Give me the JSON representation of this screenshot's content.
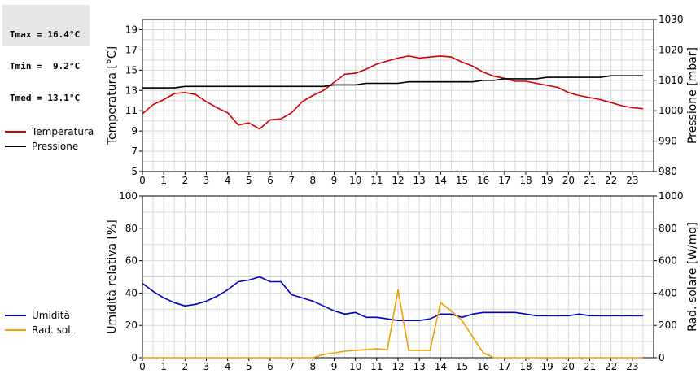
{
  "stats": {
    "tmax": "Tmax = 16.4°C",
    "tmin": "Tmin =  9.2°C",
    "tmed": "Tmed = 13.1°C"
  },
  "legend_top": [
    {
      "label": "Temperatura",
      "color": "#d40000"
    },
    {
      "label": "Pressione",
      "color": "#000000"
    }
  ],
  "legend_bottom": [
    {
      "label": "Umidità",
      "color": "#0000c8"
    },
    {
      "label": "Rad. sol.",
      "color": "#f0a000"
    }
  ],
  "chart_data": [
    {
      "type": "line",
      "ylabel": "Temperatura [°C]",
      "y2label": "Pressione [mbar]",
      "xlim": [
        0,
        24
      ],
      "xticks": [
        0,
        1,
        2,
        3,
        4,
        5,
        6,
        7,
        8,
        9,
        10,
        11,
        12,
        13,
        14,
        15,
        16,
        17,
        18,
        19,
        20,
        21,
        22,
        23
      ],
      "ylim": [
        5,
        20
      ],
      "yticks": [
        5,
        7,
        9,
        11,
        13,
        15,
        17,
        19
      ],
      "y2lim": [
        980,
        1030
      ],
      "y2ticks": [
        980,
        990,
        1000,
        1010,
        1020,
        1030
      ],
      "grid": true,
      "series": [
        {
          "name": "Temperatura",
          "axis": "left",
          "color": "#d40000",
          "x": [
            0,
            0.5,
            1,
            1.5,
            2,
            2.5,
            3,
            3.5,
            4,
            4.5,
            5,
            5.5,
            6,
            6.5,
            7,
            7.5,
            8,
            8.5,
            9,
            9.5,
            10,
            10.5,
            11,
            11.5,
            12,
            12.5,
            13,
            13.5,
            14,
            14.5,
            15,
            15.5,
            16,
            16.5,
            17,
            17.5,
            18,
            18.5,
            19,
            19.5,
            20,
            20.5,
            21,
            21.5,
            22,
            22.5,
            23,
            23.5
          ],
          "values": [
            10.7,
            11.6,
            12.1,
            12.7,
            12.8,
            12.6,
            11.9,
            11.3,
            10.8,
            9.6,
            9.8,
            9.2,
            10.1,
            10.2,
            10.8,
            11.9,
            12.5,
            13.0,
            13.8,
            14.6,
            14.7,
            15.1,
            15.6,
            15.9,
            16.2,
            16.4,
            16.2,
            16.3,
            16.4,
            16.3,
            15.8,
            15.4,
            14.8,
            14.4,
            14.2,
            13.9,
            13.9,
            13.7,
            13.5,
            13.3,
            12.8,
            12.5,
            12.3,
            12.1,
            11.8,
            11.5,
            11.3,
            11.2
          ]
        },
        {
          "name": "Pressione",
          "axis": "right",
          "color": "#000000",
          "x": [
            0,
            1.5,
            2,
            8.5,
            9,
            10,
            10.5,
            12,
            12.5,
            15.5,
            16,
            16.5,
            17,
            18.5,
            19,
            21.5,
            22,
            23.5
          ],
          "values": [
            1007.5,
            1007.5,
            1008,
            1008,
            1008.5,
            1008.5,
            1009,
            1009,
            1009.5,
            1009.5,
            1010,
            1010,
            1010.5,
            1010.5,
            1011,
            1011,
            1011.5,
            1011.5
          ]
        }
      ]
    },
    {
      "type": "line",
      "ylabel": "Umidità relativa [%]",
      "y2label": "Rad. solare [W/mq]",
      "xlim": [
        0,
        24
      ],
      "xticks": [
        0,
        1,
        2,
        3,
        4,
        5,
        6,
        7,
        8,
        9,
        10,
        11,
        12,
        13,
        14,
        15,
        16,
        17,
        18,
        19,
        20,
        21,
        22,
        23
      ],
      "ylim": [
        0,
        100
      ],
      "yticks": [
        0,
        20,
        40,
        60,
        80,
        100
      ],
      "y2lim": [
        0,
        1000
      ],
      "y2ticks": [
        0,
        200,
        400,
        600,
        800,
        1000
      ],
      "grid": true,
      "series": [
        {
          "name": "Umidità",
          "axis": "left",
          "color": "#0000c8",
          "x": [
            0,
            0.5,
            1,
            1.5,
            2,
            2.5,
            3,
            3.5,
            4,
            4.5,
            5,
            5.5,
            6,
            6.5,
            7,
            7.5,
            8,
            8.5,
            9,
            9.5,
            10,
            10.5,
            11,
            11.5,
            12,
            12.5,
            13,
            13.5,
            14,
            14.5,
            15,
            15.5,
            16,
            16.5,
            17,
            17.5,
            18,
            18.5,
            19,
            19.5,
            20,
            20.5,
            21,
            21.5,
            22,
            22.5,
            23,
            23.5
          ],
          "values": [
            46,
            41,
            37,
            34,
            32,
            33,
            35,
            38,
            42,
            47,
            48,
            50,
            47,
            47,
            39,
            37,
            35,
            32,
            29,
            27,
            28,
            25,
            25,
            24,
            23,
            23,
            23,
            24,
            27,
            27,
            25,
            27,
            28,
            28,
            28,
            28,
            27,
            26,
            26,
            26,
            26,
            27,
            26,
            26,
            26,
            26,
            26,
            26
          ]
        },
        {
          "name": "Rad. sol.",
          "axis": "right",
          "color": "#f0a000",
          "x": [
            0,
            8,
            8.5,
            9,
            9.5,
            10,
            10.5,
            11,
            11.5,
            12,
            12.5,
            13,
            13.5,
            14,
            14.5,
            15,
            15.5,
            16,
            16.5,
            17,
            23.5
          ],
          "values": [
            0,
            0,
            20,
            30,
            40,
            45,
            50,
            55,
            50,
            420,
            45,
            45,
            45,
            340,
            290,
            230,
            130,
            30,
            0,
            0,
            0
          ]
        }
      ]
    }
  ]
}
